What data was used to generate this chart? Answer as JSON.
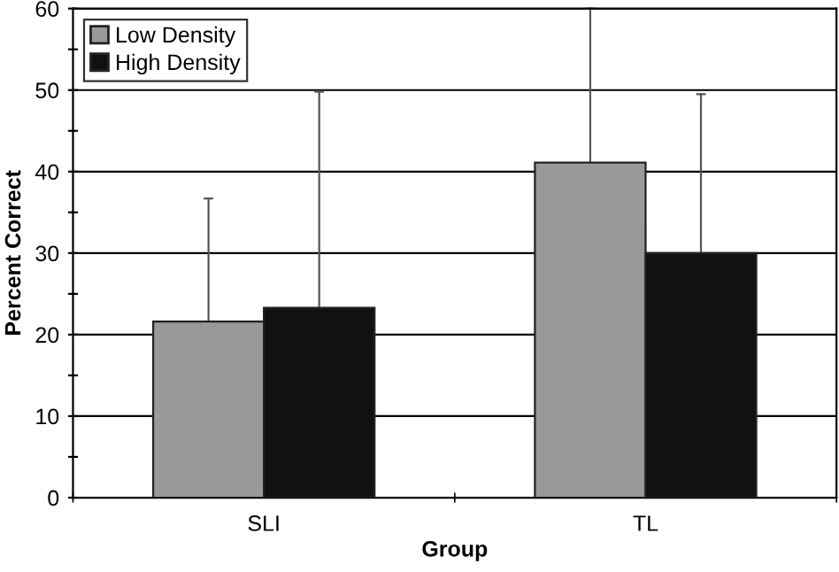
{
  "chart_data": {
    "type": "bar",
    "xlabel": "Group",
    "ylabel": "Percent Correct",
    "categories": [
      "SLI",
      "TL"
    ],
    "series": [
      {
        "name": "Low Density",
        "color": "#999999",
        "values": [
          21.6,
          41.1
        ],
        "errors": [
          [
            21.6,
            36.7
          ],
          [
            41.1,
            60
          ]
        ]
      },
      {
        "name": "High Density",
        "color": "#111111",
        "values": [
          23.3,
          30.0
        ],
        "errors": [
          [
            23.3,
            49.8
          ],
          [
            30.0,
            49.5
          ]
        ]
      }
    ],
    "ylim": [
      0,
      60
    ],
    "yticks": [
      0,
      {
        "value": 5,
        "label": null
      },
      10,
      {
        "value": 15,
        "label": null
      },
      20,
      {
        "value": 25,
        "label": null
      },
      30,
      {
        "value": 35,
        "label": null
      },
      40,
      {
        "value": 45,
        "label": null
      },
      50,
      {
        "value": 55,
        "label": null
      },
      60
    ],
    "grid": "y",
    "legend": "top left"
  }
}
